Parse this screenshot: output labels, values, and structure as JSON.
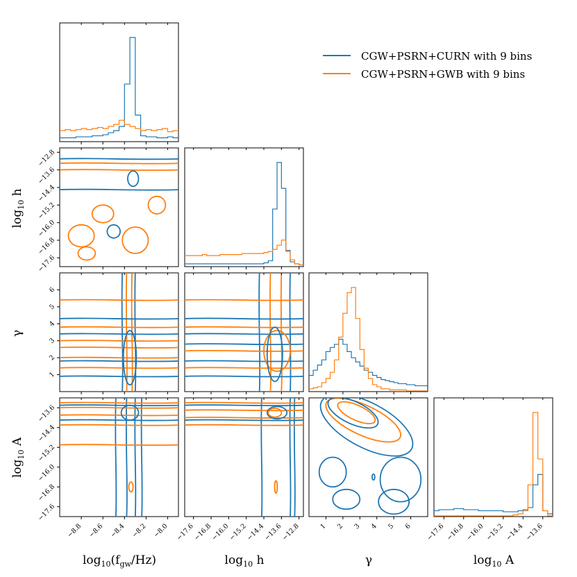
{
  "chart_data": {
    "type": "corner",
    "parameters": [
      {
        "key": "logf",
        "label": "log10(f_gw/Hz)",
        "range": [
          -9.0,
          -7.9
        ],
        "ticks": [
          -8.8,
          -8.6,
          -8.4,
          -8.2,
          -8.0
        ],
        "tick_labels": [
          "−8.8",
          "−8.6",
          "−8.4",
          "−8.2",
          "−8.0"
        ]
      },
      {
        "key": "logh",
        "label": "log10 h",
        "range": [
          -18.0,
          -12.6
        ],
        "ticks": [
          -17.6,
          -16.8,
          -16.0,
          -15.2,
          -14.4,
          -13.6,
          -12.8
        ],
        "tick_labels": [
          "−17.6",
          "−16.8",
          "−16.0",
          "−15.2",
          "−14.4",
          "−13.6",
          "−12.8"
        ]
      },
      {
        "key": "gamma",
        "label": "γ",
        "range": [
          0.0,
          7.0
        ],
        "ticks": [
          1,
          2,
          3,
          4,
          5,
          6
        ],
        "tick_labels": [
          "1",
          "2",
          "3",
          "4",
          "5",
          "6"
        ]
      },
      {
        "key": "logA",
        "label": "log10 A",
        "range": [
          -18.0,
          -13.2
        ],
        "ticks": [
          -17.6,
          -16.8,
          -16.0,
          -15.2,
          -14.4,
          -13.6
        ],
        "tick_labels": [
          "−17.6",
          "−16.8",
          "−16.0",
          "−15.2",
          "−14.4",
          "−13.6"
        ]
      }
    ],
    "series": [
      {
        "name": "CGW+PSRN+CURN with 9 bins",
        "color": "#1f77b4"
      },
      {
        "name": "CGW+PSRN+GWB with 9 bins",
        "color": "#ff7f0e"
      }
    ],
    "histograms": {
      "logf": [
        {
          "edges_start": -9.0,
          "bin_width": 0.05,
          "heights": [
            0.03,
            0.03,
            0.03,
            0.04,
            0.04,
            0.04,
            0.05,
            0.05,
            0.06,
            0.08,
            0.1,
            0.14,
            0.55,
            1.0,
            0.25,
            0.05,
            0.04,
            0.04,
            0.03,
            0.03,
            0.04,
            0.03
          ]
        },
        {
          "edges_start": -9.0,
          "bin_width": 0.05,
          "heights": [
            0.1,
            0.11,
            0.1,
            0.11,
            0.12,
            0.11,
            0.12,
            0.13,
            0.12,
            0.14,
            0.16,
            0.2,
            0.16,
            0.14,
            0.12,
            0.1,
            0.11,
            0.1,
            0.11,
            0.12,
            0.09,
            0.1
          ]
        }
      ],
      "logh": [
        {
          "edges_start": -18.0,
          "bin_width": 0.2,
          "heights": [
            0.02,
            0.02,
            0.02,
            0.02,
            0.02,
            0.02,
            0.02,
            0.02,
            0.02,
            0.02,
            0.02,
            0.02,
            0.02,
            0.02,
            0.02,
            0.02,
            0.02,
            0.02,
            0.03,
            0.05,
            0.55,
            1.0,
            0.75,
            0.15,
            0.04,
            0.02,
            0.01
          ]
        },
        {
          "edges_start": -18.0,
          "bin_width": 0.2,
          "heights": [
            0.1,
            0.1,
            0.1,
            0.1,
            0.11,
            0.1,
            0.1,
            0.1,
            0.11,
            0.11,
            0.11,
            0.11,
            0.11,
            0.12,
            0.12,
            0.12,
            0.12,
            0.12,
            0.13,
            0.14,
            0.16,
            0.2,
            0.25,
            0.14,
            0.06,
            0.02,
            0.01
          ]
        }
      ],
      "gamma": [
        {
          "edges_start": 0.0,
          "bin_width": 0.25,
          "heights": [
            0.15,
            0.2,
            0.25,
            0.3,
            0.38,
            0.42,
            0.45,
            0.5,
            0.45,
            0.38,
            0.32,
            0.28,
            0.24,
            0.2,
            0.18,
            0.15,
            0.13,
            0.11,
            0.1,
            0.09,
            0.08,
            0.07,
            0.07,
            0.06,
            0.06,
            0.05,
            0.05,
            0.05
          ]
        },
        {
          "edges_start": 0.0,
          "bin_width": 0.25,
          "heights": [
            0.02,
            0.03,
            0.04,
            0.08,
            0.12,
            0.18,
            0.3,
            0.52,
            0.75,
            0.95,
            1.0,
            0.7,
            0.4,
            0.22,
            0.12,
            0.06,
            0.04,
            0.02,
            0.02,
            0.01,
            0.01,
            0.01,
            0.01,
            0.0,
            0.0,
            0.0,
            0.0,
            0.0
          ]
        }
      ],
      "logA": [
        {
          "edges_start": -18.0,
          "bin_width": 0.2,
          "heights": [
            0.05,
            0.06,
            0.06,
            0.06,
            0.07,
            0.07,
            0.06,
            0.06,
            0.06,
            0.05,
            0.05,
            0.05,
            0.05,
            0.05,
            0.04,
            0.04,
            0.04,
            0.05,
            0.06,
            0.08,
            0.3,
            0.4,
            0.05,
            0.02
          ]
        },
        {
          "edges_start": -18.0,
          "bin_width": 0.2,
          "heights": [
            0.0,
            0.0,
            0.0,
            0.0,
            0.0,
            0.0,
            0.0,
            0.0,
            0.0,
            0.0,
            0.0,
            0.0,
            0.0,
            0.0,
            0.0,
            0.0,
            0.01,
            0.02,
            0.05,
            0.3,
            1.0,
            0.55,
            0.05,
            0.0
          ]
        }
      ]
    },
    "legend": "top-right"
  }
}
